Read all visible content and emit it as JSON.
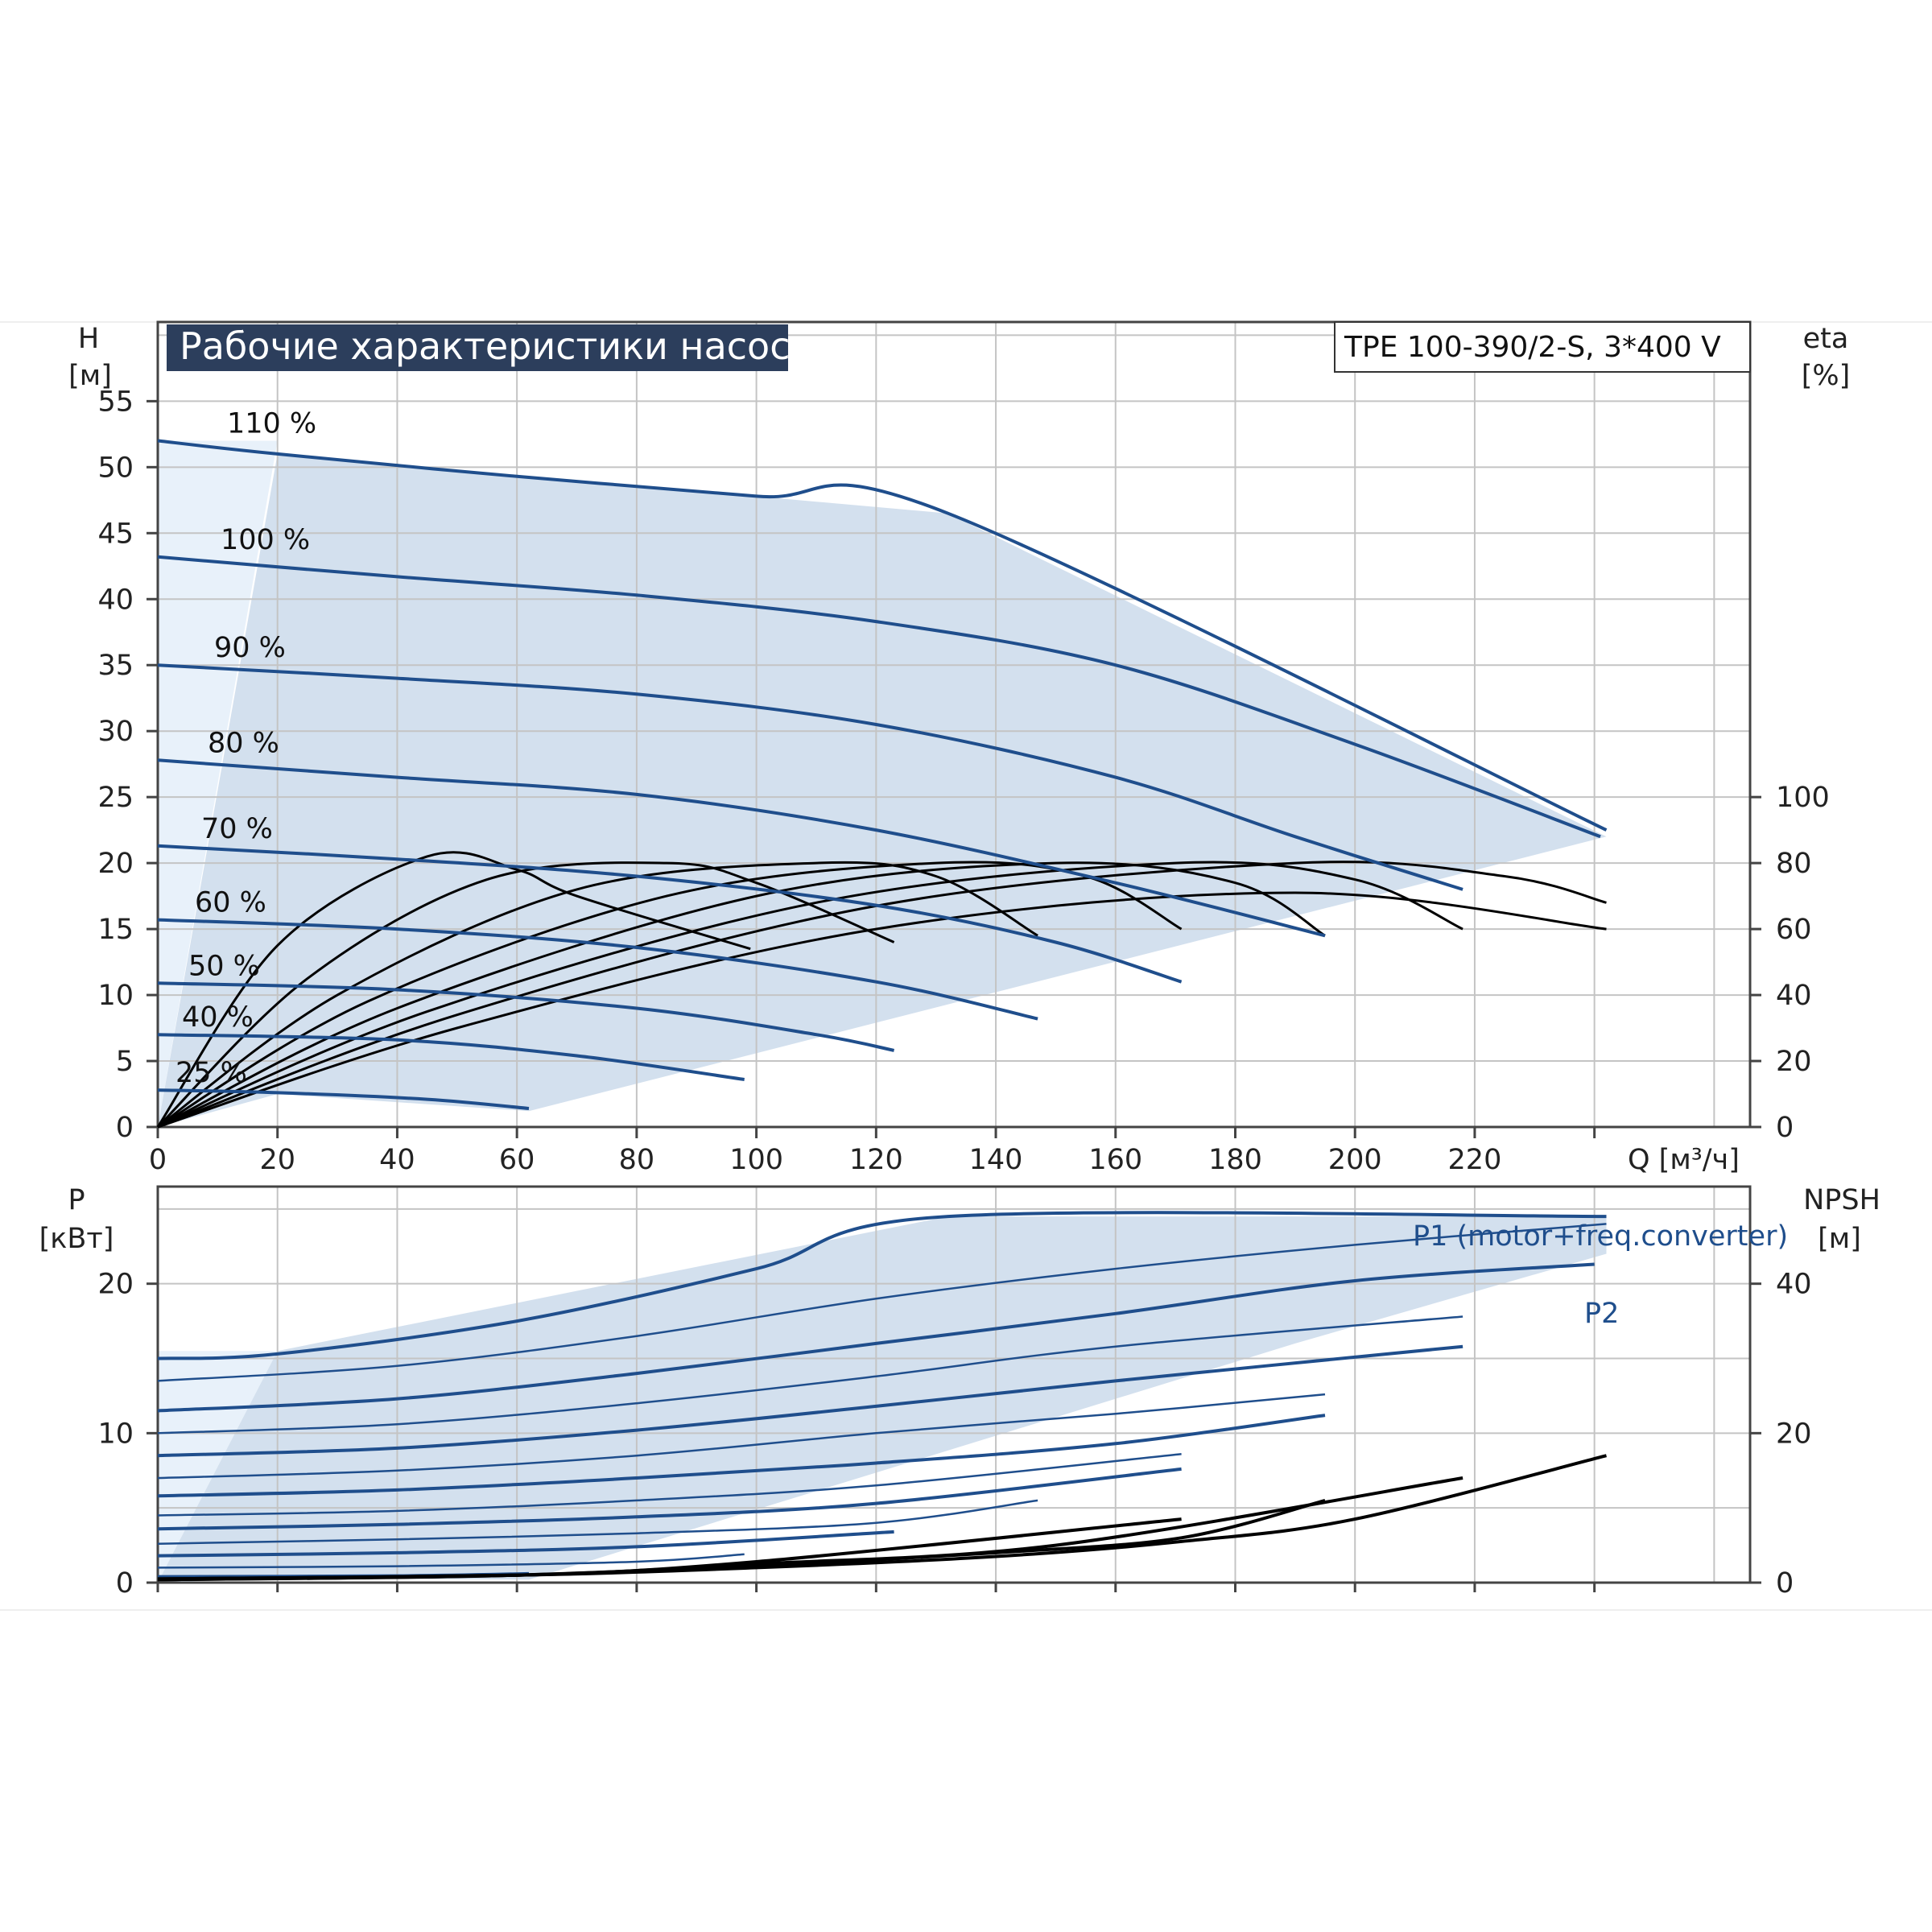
{
  "chart_data": [
    {
      "type": "line",
      "title": "Рабочие характеристики насоса",
      "model": "TPE 100-390/2-S, 3*400 V",
      "ylabel": "H",
      "yunit": "[м]",
      "y2label": "eta",
      "y2unit": "[%]",
      "xlabel": "Q [м³/ч]",
      "xlim": [
        0,
        266
      ],
      "ylim": [
        0,
        61
      ],
      "y2_ticks": [
        0,
        20,
        40,
        60,
        80,
        100
      ],
      "x_ticks": [
        0,
        20,
        40,
        60,
        80,
        100,
        120,
        140,
        160,
        180,
        200,
        220
      ],
      "y_ticks": [
        0,
        5,
        10,
        15,
        20,
        25,
        30,
        35,
        40,
        45,
        50,
        55
      ],
      "grid": true,
      "operating_area": [
        [
          0,
          0
        ],
        [
          20,
          51
        ],
        [
          132,
          46.5
        ],
        [
          242,
          22
        ],
        [
          62,
          1.2
        ],
        [
          20,
          2.5
        ],
        [
          0,
          0
        ]
      ],
      "series": [
        {
          "name": "110 %",
          "points": [
            [
              0,
              52
            ],
            [
              20,
              51
            ],
            [
              60,
              49.3
            ],
            [
              100,
              47.8
            ],
            [
              132,
              46.5
            ],
            [
              242,
              22.5
            ]
          ]
        },
        {
          "name": "100 %",
          "points": [
            [
              0,
              43.2
            ],
            [
              40,
              41.7
            ],
            [
              80,
              40.3
            ],
            [
              120,
              38.3
            ],
            [
              160,
              35
            ],
            [
              200,
              29
            ],
            [
              241,
              22
            ]
          ]
        },
        {
          "name": "90 %",
          "points": [
            [
              0,
              35
            ],
            [
              40,
              34
            ],
            [
              80,
              32.8
            ],
            [
              120,
              30.5
            ],
            [
              160,
              26.5
            ],
            [
              190,
              22
            ],
            [
              218,
              18
            ]
          ]
        },
        {
          "name": "80 %",
          "points": [
            [
              0,
              27.8
            ],
            [
              40,
              26.5
            ],
            [
              80,
              25.2
            ],
            [
              120,
              22.5
            ],
            [
              160,
              18.5
            ],
            [
              195,
              14.5
            ]
          ]
        },
        {
          "name": "70 %",
          "points": [
            [
              0,
              21.3
            ],
            [
              40,
              20.3
            ],
            [
              80,
              19
            ],
            [
              120,
              16.8
            ],
            [
              150,
              14
            ],
            [
              171,
              11
            ]
          ]
        },
        {
          "name": "60 %",
          "points": [
            [
              0,
              15.7
            ],
            [
              40,
              15
            ],
            [
              80,
              13.6
            ],
            [
              120,
              11
            ],
            [
              147,
              8.2
            ]
          ]
        },
        {
          "name": "50 %",
          "points": [
            [
              0,
              10.9
            ],
            [
              40,
              10.4
            ],
            [
              80,
              9
            ],
            [
              110,
              7
            ],
            [
              123,
              5.8
            ]
          ]
        },
        {
          "name": "40 %",
          "points": [
            [
              0,
              7
            ],
            [
              40,
              6.6
            ],
            [
              70,
              5.4
            ],
            [
              98,
              3.6
            ]
          ]
        },
        {
          "name": "25 %",
          "points": [
            [
              0,
              2.8
            ],
            [
              20,
              2.6
            ],
            [
              45,
              2.1
            ],
            [
              62,
              1.4
            ]
          ]
        }
      ],
      "eta_curves": [
        {
          "points": [
            [
              0,
              0
            ],
            [
              20,
              55
            ],
            [
              45,
              82
            ],
            [
              60,
              78
            ],
            [
              70,
              70
            ],
            [
              99,
              54
            ]
          ]
        },
        {
          "points": [
            [
              0,
              0
            ],
            [
              25,
              45
            ],
            [
              55,
              75
            ],
            [
              85,
              80
            ],
            [
              100,
              74
            ],
            [
              123,
              56
            ]
          ]
        },
        {
          "points": [
            [
              0,
              0
            ],
            [
              30,
              40
            ],
            [
              70,
              72
            ],
            [
              110,
              80
            ],
            [
              130,
              76
            ],
            [
              147,
              58
            ]
          ]
        },
        {
          "points": [
            [
              0,
              0
            ],
            [
              35,
              38
            ],
            [
              85,
              70
            ],
            [
              130,
              80
            ],
            [
              155,
              76
            ],
            [
              171,
              60
            ]
          ]
        },
        {
          "points": [
            [
              0,
              0
            ],
            [
              40,
              36
            ],
            [
              100,
              70
            ],
            [
              150,
              80
            ],
            [
              180,
              74
            ],
            [
              195,
              58
            ]
          ]
        },
        {
          "points": [
            [
              0,
              0
            ],
            [
              45,
              35
            ],
            [
              110,
              68
            ],
            [
              170,
              80
            ],
            [
              200,
              75
            ],
            [
              218,
              60
            ]
          ]
        },
        {
          "points": [
            [
              0,
              0
            ],
            [
              50,
              34
            ],
            [
              120,
              67
            ],
            [
              190,
              80
            ],
            [
              225,
              76
            ],
            [
              242,
              68
            ]
          ]
        },
        {
          "points": [
            [
              0,
              0
            ],
            [
              50,
              30
            ],
            [
              120,
              60
            ],
            [
              190,
              71
            ],
            [
              242,
              60
            ]
          ]
        }
      ]
    },
    {
      "type": "line",
      "ylabel": "P",
      "yunit": "[кВт]",
      "y2label": "NPSH",
      "y2unit": "[м]",
      "xlim": [
        0,
        266
      ],
      "ylim": [
        0,
        26.5
      ],
      "y_ticks": [
        0,
        10,
        20
      ],
      "y2_ticks": [
        0,
        20,
        40
      ],
      "grid": true,
      "operating_area": [
        [
          0,
          0
        ],
        [
          20,
          15.5
        ],
        [
          132,
          24.5
        ],
        [
          242,
          24.5
        ],
        [
          242,
          22
        ],
        [
          190,
          16
        ],
        [
          62,
          0.2
        ],
        [
          20,
          0.3
        ],
        [
          0,
          0
        ]
      ],
      "p1_label": "P1 (motor+freq.converter)",
      "p2_label": "P2",
      "power_curves": [
        {
          "points": [
            [
              0,
              15
            ],
            [
              20,
              15.3
            ],
            [
              60,
              17.5
            ],
            [
              100,
              21
            ],
            [
              132,
              24.5
            ],
            [
              242,
              24.5
            ]
          ]
        },
        {
          "points": [
            [
              0,
              13.5
            ],
            [
              40,
              14.5
            ],
            [
              80,
              16.5
            ],
            [
              120,
              19
            ],
            [
              160,
              21
            ],
            [
              200,
              22.6
            ],
            [
              242,
              24
            ]
          ]
        },
        {
          "points": [
            [
              0,
              11.5
            ],
            [
              40,
              12.3
            ],
            [
              80,
              14
            ],
            [
              120,
              16
            ],
            [
              160,
              18
            ],
            [
              200,
              20.2
            ],
            [
              240,
              21.3
            ]
          ]
        },
        {
          "points": [
            [
              0,
              10
            ],
            [
              40,
              10.6
            ],
            [
              80,
              12
            ],
            [
              120,
              13.8
            ],
            [
              160,
              15.8
            ],
            [
              218,
              17.8
            ]
          ]
        },
        {
          "points": [
            [
              0,
              8.5
            ],
            [
              40,
              9
            ],
            [
              80,
              10.2
            ],
            [
              120,
              11.8
            ],
            [
              160,
              13.5
            ],
            [
              218,
              15.8
            ]
          ]
        },
        {
          "points": [
            [
              0,
              7
            ],
            [
              40,
              7.5
            ],
            [
              80,
              8.5
            ],
            [
              120,
              10
            ],
            [
              160,
              11.3
            ],
            [
              195,
              12.6
            ]
          ]
        },
        {
          "points": [
            [
              0,
              5.8
            ],
            [
              40,
              6.2
            ],
            [
              80,
              7
            ],
            [
              120,
              8
            ],
            [
              160,
              9.3
            ],
            [
              195,
              11.2
            ]
          ]
        },
        {
          "points": [
            [
              0,
              4.5
            ],
            [
              40,
              4.8
            ],
            [
              80,
              5.5
            ],
            [
              120,
              6.5
            ],
            [
              171,
              8.6
            ]
          ]
        },
        {
          "points": [
            [
              0,
              3.6
            ],
            [
              40,
              3.9
            ],
            [
              80,
              4.4
            ],
            [
              120,
              5.3
            ],
            [
              171,
              7.6
            ]
          ]
        },
        {
          "points": [
            [
              0,
              2.6
            ],
            [
              40,
              2.9
            ],
            [
              80,
              3.3
            ],
            [
              120,
              4
            ],
            [
              147,
              5.5
            ]
          ]
        },
        {
          "points": [
            [
              0,
              1.8
            ],
            [
              40,
              2
            ],
            [
              80,
              2.4
            ],
            [
              123,
              3.4
            ]
          ]
        },
        {
          "points": [
            [
              0,
              1
            ],
            [
              40,
              1.1
            ],
            [
              80,
              1.4
            ],
            [
              98,
              1.9
            ]
          ]
        },
        {
          "points": [
            [
              0,
              0.4
            ],
            [
              40,
              0.45
            ],
            [
              62,
              0.6
            ]
          ]
        }
      ],
      "npsh_curves": [
        {
          "points": [
            [
              0,
              0.5
            ],
            [
              60,
              1
            ],
            [
              100,
              2
            ],
            [
              140,
              3.5
            ],
            [
              171,
              5.5
            ],
            [
              200,
              8.5
            ],
            [
              242,
              17
            ]
          ]
        },
        {
          "points": [
            [
              0,
              0.5
            ],
            [
              60,
              1
            ],
            [
              100,
              2.2
            ],
            [
              140,
              4
            ],
            [
              171,
              6
            ],
            [
              195,
              11
            ]
          ]
        },
        {
          "points": [
            [
              0,
              0.4
            ],
            [
              60,
              1
            ],
            [
              100,
              2.5
            ],
            [
              150,
              5
            ],
            [
              218,
              14
            ]
          ]
        },
        {
          "points": [
            [
              0,
              0.4
            ],
            [
              60,
              1
            ],
            [
              100,
              2.8
            ],
            [
              171,
              8.5
            ]
          ]
        }
      ]
    }
  ],
  "colors": {
    "curve_blue": "#1f4e8c",
    "area_fill": "#d3e0ee",
    "area_light": "#e8f1fa",
    "title_bg": "#2c3e5c",
    "grid": "#c4c4c4",
    "eta_black": "#000000"
  }
}
